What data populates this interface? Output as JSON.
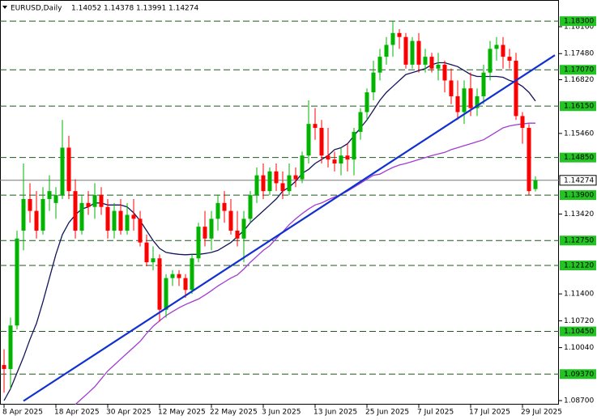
{
  "chart_data": {
    "type": "candlestick",
    "symbol": "EURUSD,Daily",
    "header_values": [
      1.14052,
      1.14378,
      1.13991,
      1.14274
    ],
    "categories": [
      "8 Apr 2025",
      null,
      null,
      null,
      null,
      null,
      null,
      null,
      "18 Apr 2025",
      null,
      null,
      null,
      null,
      null,
      null,
      null,
      "30 Apr 2025",
      null,
      null,
      null,
      null,
      null,
      null,
      null,
      "12 May 2025",
      null,
      null,
      null,
      null,
      null,
      null,
      null,
      "22 May 2025",
      null,
      null,
      null,
      null,
      null,
      null,
      null,
      "3 Jun 2025",
      null,
      null,
      null,
      null,
      null,
      null,
      null,
      "13 Jun 2025",
      null,
      null,
      null,
      null,
      null,
      null,
      null,
      "25 Jun 2025",
      null,
      null,
      null,
      null,
      null,
      null,
      null,
      "7 Jul 2025",
      null,
      null,
      null,
      null,
      null,
      null,
      null,
      "17 Jul 2025",
      null,
      null,
      null,
      null,
      null,
      null,
      null,
      "29 Jul 2025",
      null,
      null
    ],
    "open": [
      1.096,
      1.095,
      1.106,
      1.13,
      1.138,
      1.135,
      1.13,
      1.138,
      1.137,
      1.139,
      1.151,
      1.14,
      1.13,
      1.137,
      1.136,
      1.139,
      1.136,
      1.13,
      1.135,
      1.13,
      1.134,
      1.133,
      1.127,
      1.122,
      1.123,
      1.11,
      1.118,
      1.119,
      1.118,
      1.115,
      1.123,
      1.131,
      1.128,
      1.133,
      1.137,
      1.135,
      1.13,
      1.128,
      1.133,
      1.139,
      1.144,
      1.14,
      1.145,
      1.142,
      1.14,
      1.144,
      1.143,
      1.149,
      1.157,
      1.156,
      1.149,
      1.148,
      1.147,
      1.149,
      1.148,
      1.155,
      1.16,
      1.165,
      1.17,
      1.174,
      1.177,
      1.18,
      1.179,
      1.172,
      1.178,
      1.172,
      1.174,
      1.171,
      1.172,
      1.168,
      1.164,
      1.16,
      1.166,
      1.161,
      1.164,
      1.17,
      1.176,
      1.177,
      1.174,
      1.173,
      1.159,
      1.156,
      1.14052
    ],
    "high": [
      1.1,
      1.108,
      1.13,
      1.147,
      1.142,
      1.14,
      1.141,
      1.144,
      1.141,
      1.158,
      1.154,
      1.143,
      1.139,
      1.14,
      1.142,
      1.141,
      1.138,
      1.137,
      1.138,
      1.137,
      1.138,
      1.135,
      1.129,
      1.126,
      1.124,
      1.119,
      1.12,
      1.12,
      1.119,
      1.124,
      1.132,
      1.135,
      1.135,
      1.139,
      1.14,
      1.138,
      1.135,
      1.135,
      1.14,
      1.146,
      1.147,
      1.146,
      1.147,
      1.145,
      1.147,
      1.146,
      1.15,
      1.163,
      1.161,
      1.158,
      1.156,
      1.15,
      1.151,
      1.152,
      1.156,
      1.161,
      1.166,
      1.173,
      1.176,
      1.179,
      1.183,
      1.181,
      1.18,
      1.179,
      1.18,
      1.176,
      1.175,
      1.175,
      1.173,
      1.171,
      1.168,
      1.168,
      1.17,
      1.166,
      1.172,
      1.178,
      1.179,
      1.179,
      1.176,
      1.175,
      1.16,
      1.157,
      1.14378
    ],
    "low": [
      1.089,
      1.09,
      1.105,
      1.125,
      1.132,
      1.128,
      1.129,
      1.135,
      1.133,
      1.138,
      1.138,
      1.128,
      1.129,
      1.134,
      1.133,
      1.134,
      1.128,
      1.128,
      1.129,
      1.129,
      1.13,
      1.126,
      1.121,
      1.12,
      1.107,
      1.108,
      1.116,
      1.116,
      1.113,
      1.114,
      1.122,
      1.126,
      1.125,
      1.13,
      1.132,
      1.129,
      1.126,
      1.122,
      1.132,
      1.137,
      1.138,
      1.139,
      1.14,
      1.138,
      1.139,
      1.141,
      1.142,
      1.147,
      1.153,
      1.147,
      1.146,
      1.145,
      1.144,
      1.145,
      1.144,
      1.153,
      1.158,
      1.163,
      1.168,
      1.172,
      1.174,
      1.176,
      1.171,
      1.171,
      1.17,
      1.17,
      1.17,
      1.168,
      1.165,
      1.162,
      1.158,
      1.157,
      1.159,
      1.159,
      1.162,
      1.168,
      1.173,
      1.171,
      1.171,
      1.158,
      1.152,
      1.139,
      1.13991
    ],
    "close": [
      1.095,
      1.106,
      1.128,
      1.138,
      1.135,
      1.13,
      1.138,
      1.14,
      1.139,
      1.151,
      1.14,
      1.13,
      1.137,
      1.136,
      1.139,
      1.136,
      1.13,
      1.135,
      1.13,
      1.134,
      1.133,
      1.127,
      1.122,
      1.123,
      1.11,
      1.118,
      1.119,
      1.118,
      1.115,
      1.123,
      1.131,
      1.128,
      1.133,
      1.137,
      1.135,
      1.13,
      1.128,
      1.133,
      1.139,
      1.144,
      1.14,
      1.145,
      1.142,
      1.14,
      1.144,
      1.143,
      1.149,
      1.157,
      1.156,
      1.149,
      1.148,
      1.147,
      1.149,
      1.148,
      1.155,
      1.16,
      1.165,
      1.17,
      1.174,
      1.177,
      1.18,
      1.179,
      1.172,
      1.178,
      1.172,
      1.174,
      1.171,
      1.172,
      1.168,
      1.164,
      1.16,
      1.166,
      1.161,
      1.164,
      1.17,
      1.176,
      1.177,
      1.174,
      1.173,
      1.159,
      1.156,
      1.14,
      1.14274
    ],
    "up_color": "#00b400",
    "down_color": "#ff0000",
    "lines": [
      {
        "color": "#14145c",
        "values": [
          1.087,
          1.09,
          1.094,
          1.098,
          1.1025,
          1.1065,
          1.112,
          1.118,
          1.124,
          1.129,
          1.132,
          1.134,
          1.1355,
          1.136,
          1.137,
          1.137,
          1.1365,
          1.1365,
          1.1365,
          1.136,
          1.1345,
          1.1325,
          1.13,
          1.1275,
          1.1255,
          1.1245,
          1.1242,
          1.124,
          1.1239,
          1.124,
          1.124,
          1.1242,
          1.1245,
          1.125,
          1.126,
          1.127,
          1.1285,
          1.13,
          1.132,
          1.1335,
          1.135,
          1.1365,
          1.138,
          1.14,
          1.141,
          1.1425,
          1.1445,
          1.1455,
          1.147,
          1.148,
          1.149,
          1.1505,
          1.151,
          1.152,
          1.154,
          1.156,
          1.158,
          1.1605,
          1.163,
          1.165,
          1.1665,
          1.168,
          1.1695,
          1.17,
          1.1705,
          1.171,
          1.172,
          1.1725,
          1.1725,
          1.172,
          1.1715,
          1.1705,
          1.1695,
          1.169,
          1.169,
          1.169,
          1.169,
          1.1688,
          1.168,
          1.1675,
          1.1665,
          1.165,
          1.1628
        ]
      },
      {
        "color": "#a03cd2",
        "values": [
          null,
          null,
          null,
          null,
          null,
          null,
          null,
          null,
          null,
          null,
          null,
          1.086,
          1.0875,
          1.089,
          1.0905,
          1.0925,
          1.0945,
          1.096,
          1.0975,
          1.099,
          1.1005,
          1.102,
          1.104,
          1.1058,
          1.1072,
          1.1085,
          1.1095,
          1.1105,
          1.1113,
          1.112,
          1.1127,
          1.1137,
          1.1148,
          1.116,
          1.117,
          1.118,
          1.1188,
          1.1203,
          1.122,
          1.1235,
          1.125,
          1.1262,
          1.128,
          1.1297,
          1.1315,
          1.133,
          1.1343,
          1.1355,
          1.1365,
          1.137,
          1.1378,
          1.1385,
          1.1392,
          1.14,
          1.141,
          1.142,
          1.143,
          1.144,
          1.1443,
          1.1452,
          1.146,
          1.1466,
          1.147,
          1.1475,
          1.148,
          1.1485,
          1.149,
          1.1494,
          1.1498,
          1.1505,
          1.151,
          1.1515,
          1.152,
          1.1525,
          1.153,
          1.154,
          1.155,
          1.156,
          1.1565,
          1.1568,
          1.157,
          1.1572,
          1.1572
        ]
      }
    ],
    "trend_line": {
      "color": "#1030d0",
      "x": [
        3,
        85
      ],
      "values": [
        1.0869,
        1.1744
      ]
    },
    "levels": {
      "color": "#1f5a1f",
      "values": [
        1.183,
        1.1707,
        1.1615,
        1.1485,
        1.139,
        1.1275,
        1.1212,
        1.1045,
        1.0937
      ],
      "value_labels": [
        "1.18300",
        "1.17070",
        "1.16150",
        "1.14850",
        "1.13900",
        "1.12750",
        "1.12120",
        "1.10450",
        "1.09370"
      ],
      "label_color": "#22c322"
    },
    "last_price": {
      "value": 1.14274,
      "label": "1.14274"
    },
    "xlim": [
      -0.625,
      85.625
    ],
    "ylim": [
      1.08598,
      1.18836
    ],
    "yticks": [
      {
        "value": 1.1816,
        "label": "1.18160"
      },
      {
        "value": 1.1748,
        "label": "1.17480"
      },
      {
        "value": 1.1682,
        "label": "1.16820"
      },
      {
        "value": 1.1546,
        "label": "1.15460"
      },
      {
        "value": 1.1342,
        "label": "1.13420"
      },
      {
        "value": 1.114,
        "label": "1.11400"
      },
      {
        "value": 1.1072,
        "label": "1.10720"
      },
      {
        "value": 1.1004,
        "label": "1.10040"
      },
      {
        "value": 1.087,
        "label": "1.08700"
      }
    ]
  }
}
